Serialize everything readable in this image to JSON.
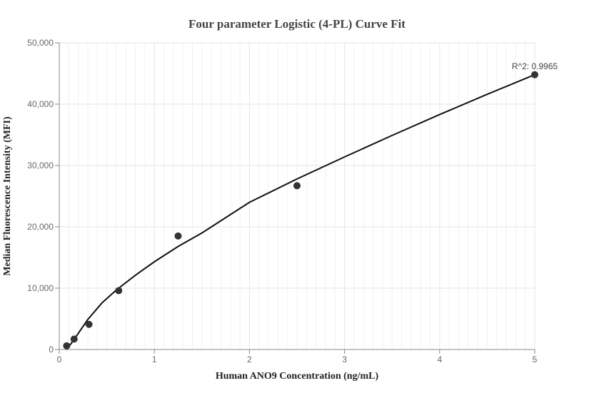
{
  "chart_data": {
    "type": "scatter",
    "title": "Four parameter Logistic (4-PL) Curve Fit",
    "xlabel": "Human ANO9 Concentration (ng/mL)",
    "ylabel": "Median Fluorescence Intensity (MFI)",
    "xlim": [
      0,
      5
    ],
    "ylim": [
      0,
      50000
    ],
    "x_ticks": [
      0,
      1,
      2,
      3,
      4,
      5
    ],
    "x_tick_labels": [
      "0",
      "1",
      "2",
      "3",
      "4",
      "5"
    ],
    "y_ticks": [
      0,
      10000,
      20000,
      30000,
      40000,
      50000
    ],
    "y_tick_labels": [
      "0",
      "10,000",
      "20,000",
      "30,000",
      "40,000",
      "50,000"
    ],
    "grid": true,
    "points": [
      {
        "x": 0.078,
        "y": 600
      },
      {
        "x": 0.156,
        "y": 1700
      },
      {
        "x": 0.3125,
        "y": 4100
      },
      {
        "x": 0.625,
        "y": 9600
      },
      {
        "x": 1.25,
        "y": 18500
      },
      {
        "x": 2.5,
        "y": 26700
      },
      {
        "x": 5.0,
        "y": 44800
      }
    ],
    "fit_curve": {
      "x": [
        0.078,
        0.15,
        0.3,
        0.45,
        0.6,
        0.8,
        1.0,
        1.25,
        1.5,
        2.0,
        2.5,
        3.0,
        3.5,
        4.0,
        4.5,
        5.0
      ],
      "y": [
        0,
        1500,
        4900,
        7600,
        9700,
        12100,
        14300,
        16800,
        19000,
        24000,
        27800,
        31400,
        34900,
        38300,
        41600,
        44800
      ]
    },
    "annotation": "R^2: 0.9965",
    "colors": {
      "points": "#333333",
      "curve": "#111111",
      "grid": "#e6e6e6"
    }
  }
}
